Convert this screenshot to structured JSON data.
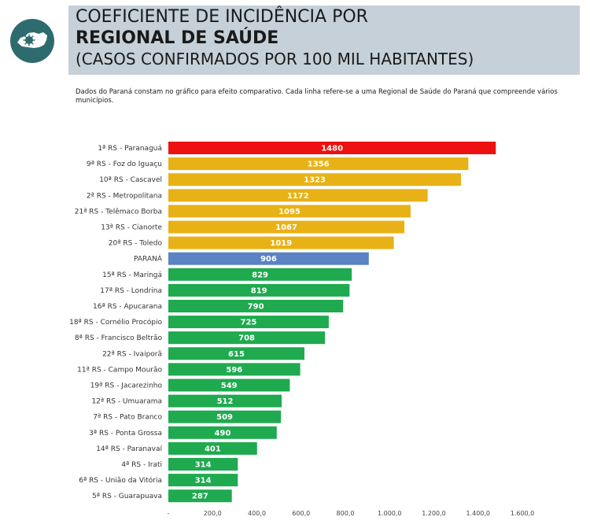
{
  "header": {
    "line1": "COEFICIENTE DE INCIDÊNCIA POR",
    "line2": "REGIONAL DE SAÚDE",
    "line3": "(CASOS CONFIRMADOS POR 100 MIL HABITANTES)"
  },
  "logo": {
    "icon": "parana-map-virus-icon",
    "background": "#2e6b6e"
  },
  "note": "Dados do Paraná constam no gráfico para efeito comparativo. Cada linha refere-se a uma Regional de Saúde do Paraná que compreende vários municípios.",
  "colors": {
    "header_band": "#c5d0d8",
    "red": "#ee1111",
    "amber": "#e8b217",
    "blue": "#5b82c2",
    "green": "#1faa4f"
  },
  "chart_data": {
    "type": "bar",
    "orientation": "horizontal",
    "categories": [
      "1ª RS - Paranaguá",
      "9ª RS - Foz do Iguaçu",
      "10ª RS - Cascavel",
      "2ª RS - Metropolitana",
      "21ª RS - Telêmaco Borba",
      "13ª RS - Cianorte",
      "20ª RS - Toledo",
      "PARANÁ",
      "15ª RS - Maringá",
      "17ª RS - Londrina",
      "16ª RS - Apucarana",
      "18ª RS - Cornélio Procópio",
      "8ª RS - Francisco Beltrão",
      "22ª RS - Ivaiporã",
      "11ª RS - Campo Mourão",
      "19ª RS - Jacarezinho",
      "12ª RS - Umuarama",
      "7ª RS - Pato Branco",
      "3ª RS - Ponta Grossa",
      "14ª RS - Paranavaí",
      "4ª RS - Irati",
      "6ª RS - União da Vitória",
      "5ª RS - Guarapuava"
    ],
    "values": [
      1480,
      1356,
      1323,
      1172,
      1095,
      1067,
      1019,
      906,
      829,
      819,
      790,
      725,
      708,
      615,
      596,
      549,
      512,
      509,
      490,
      401,
      314,
      314,
      287
    ],
    "value_labels": [
      "1480",
      "1356",
      "1323",
      "1172",
      "1095",
      "1067",
      "1019",
      "906",
      "829",
      "819",
      "790",
      "725",
      "708",
      "615",
      "596",
      "549",
      "512",
      "509",
      "490",
      "401",
      "314",
      "314",
      "287"
    ],
    "bar_colors": [
      "red",
      "amber",
      "amber",
      "amber",
      "amber",
      "amber",
      "amber",
      "blue",
      "green",
      "green",
      "green",
      "green",
      "green",
      "green",
      "green",
      "green",
      "green",
      "green",
      "green",
      "green",
      "green",
      "green",
      "green"
    ],
    "x_ticks": [
      0,
      200,
      400,
      600,
      800,
      1000,
      1200,
      1400,
      1600
    ],
    "x_tick_labels": [
      "-",
      "200,0",
      "400,0",
      "600,0",
      "800,0",
      "1.000,0",
      "1.200,0",
      "1.400,0",
      "1.600,0"
    ],
    "xlim": [
      0,
      1600
    ],
    "grid": false,
    "legend": "none",
    "title": "",
    "xlabel": "",
    "ylabel": ""
  }
}
